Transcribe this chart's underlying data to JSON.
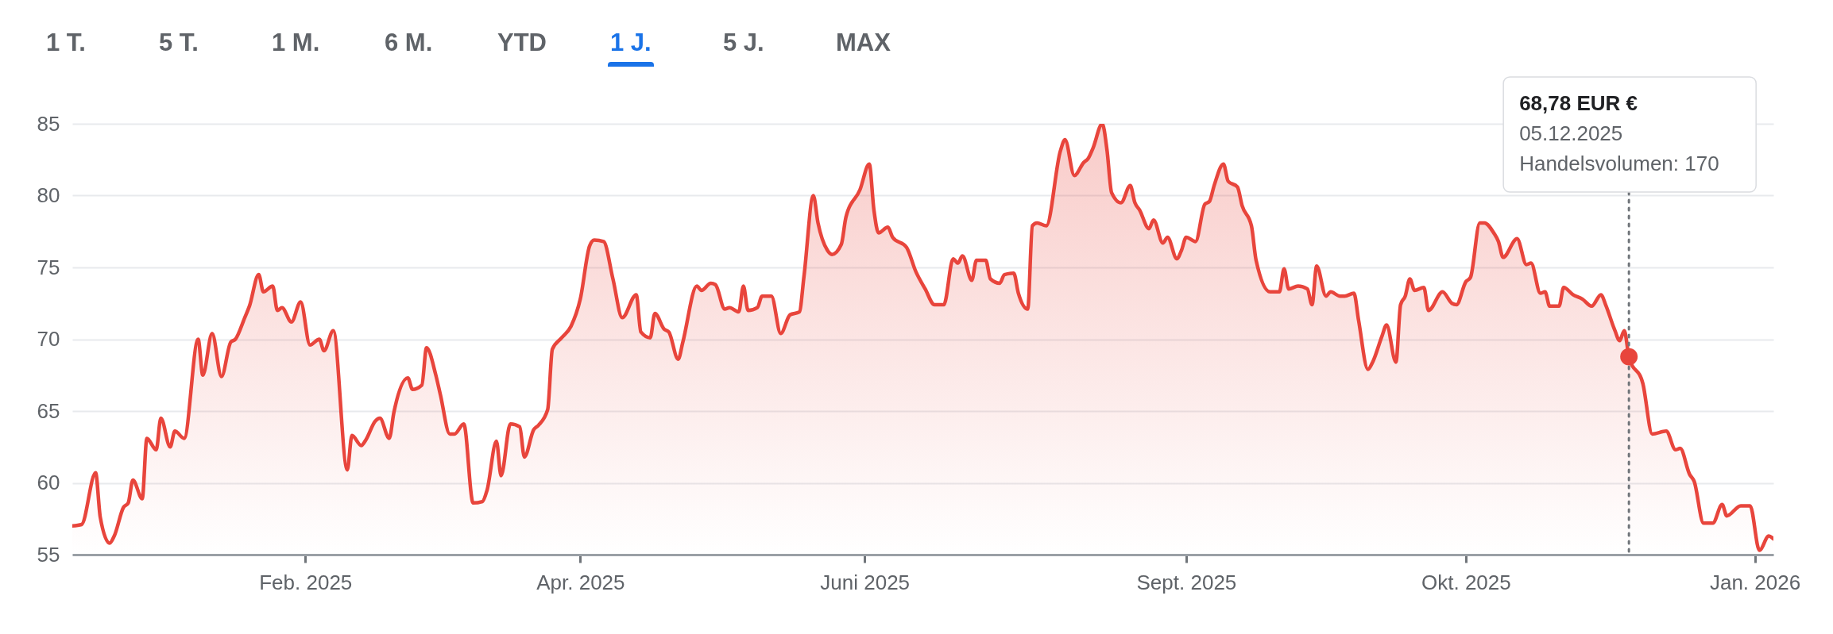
{
  "chart_data": {
    "type": "area",
    "annotations": [
      "1 T.",
      "5 T.",
      "1 M.",
      "6 M.",
      "YTD",
      "1 J.",
      "5 J.",
      "MAX",
      "68,78 EUR €\n05.12.2025\nHandelsvolumen: 170"
    ],
    "ref_lines": [
      {
        "axis": "x",
        "value": "2025-12-05",
        "color": "#70757a",
        "line_style": "dotted"
      }
    ],
    "x": [
      "2025-01-05",
      "2025-01-07",
      "2025-01-10",
      "2025-01-11",
      "2025-01-13",
      "2025-01-14",
      "2025-01-16",
      "2025-01-17",
      "2025-01-18",
      "2025-01-20",
      "2025-01-21",
      "2025-01-23",
      "2025-01-24",
      "2025-01-26",
      "2025-01-27",
      "2025-01-29",
      "2025-02-01",
      "2025-02-02",
      "2025-02-04",
      "2025-02-06",
      "2025-02-08",
      "2025-02-09",
      "2025-02-11",
      "2025-02-12",
      "2025-02-14",
      "2025-02-15",
      "2025-02-17",
      "2025-02-18",
      "2025-02-19",
      "2025-02-21",
      "2025-02-23",
      "2025-02-25",
      "2025-02-27",
      "2025-02-28",
      "2025-03-02",
      "2025-03-05",
      "2025-03-06",
      "2025-03-08",
      "2025-03-09",
      "2025-03-11",
      "2025-03-12",
      "2025-03-14",
      "2025-03-15",
      "2025-03-18",
      "2025-03-19",
      "2025-03-21",
      "2025-03-22",
      "2025-03-24",
      "2025-03-25",
      "2025-03-27",
      "2025-03-28",
      "2025-03-30",
      "2025-04-01",
      "2025-04-03",
      "2025-04-04",
      "2025-04-06",
      "2025-04-07",
      "2025-04-09",
      "2025-04-11",
      "2025-04-12",
      "2025-04-14",
      "2025-04-15",
      "2025-04-17",
      "2025-04-18",
      "2025-04-20",
      "2025-04-22",
      "2025-04-24",
      "2025-04-26",
      "2025-04-27",
      "2025-04-29",
      "2025-05-01",
      "2025-05-03",
      "2025-05-06",
      "2025-05-07",
      "2025-05-09",
      "2025-05-10",
      "2025-05-12",
      "2025-05-13",
      "2025-05-15",
      "2025-05-16",
      "2025-05-19",
      "2025-05-20",
      "2025-05-22",
      "2025-05-23",
      "2025-05-25",
      "2025-05-26",
      "2025-05-28",
      "2025-05-29",
      "2025-05-30",
      "2025-06-01",
      "2025-06-02",
      "2025-06-04",
      "2025-06-06",
      "2025-06-08",
      "2025-06-10",
      "2025-06-11",
      "2025-06-13",
      "2025-06-14",
      "2025-06-16",
      "2025-06-17",
      "2025-06-19",
      "2025-06-20",
      "2025-06-23",
      "2025-06-25",
      "2025-06-26",
      "2025-06-27",
      "2025-06-29",
      "2025-06-30",
      "2025-07-03",
      "2025-07-05",
      "2025-07-07",
      "2025-07-09",
      "2025-07-11",
      "2025-07-13",
      "2025-07-14",
      "2025-07-15",
      "2025-07-17",
      "2025-07-18",
      "2025-07-20",
      "2025-07-21",
      "2025-07-23",
      "2025-07-24",
      "2025-07-26",
      "2025-07-27",
      "2025-07-29",
      "2025-07-30",
      "2025-07-31",
      "2025-08-02",
      "2025-08-05",
      "2025-08-06",
      "2025-08-08",
      "2025-08-10",
      "2025-08-11",
      "2025-08-12",
      "2025-08-14",
      "2025-08-15",
      "2025-08-16",
      "2025-08-18",
      "2025-08-20",
      "2025-08-21",
      "2025-08-22",
      "2025-08-24",
      "2025-08-25",
      "2025-08-27",
      "2025-08-28",
      "2025-08-30",
      "2025-08-31",
      "2025-09-01",
      "2025-09-03",
      "2025-09-05",
      "2025-09-06",
      "2025-09-07",
      "2025-09-09",
      "2025-09-10",
      "2025-09-12",
      "2025-09-13",
      "2025-09-15",
      "2025-09-16",
      "2025-09-19",
      "2025-09-21",
      "2025-09-22",
      "2025-09-23",
      "2025-09-25",
      "2025-09-27",
      "2025-09-28",
      "2025-09-29",
      "2025-10-01",
      "2025-10-02",
      "2025-10-04",
      "2025-10-05",
      "2025-10-07",
      "2025-10-08",
      "2025-10-10",
      "2025-10-11",
      "2025-10-13",
      "2025-10-14",
      "2025-10-16",
      "2025-10-17",
      "2025-10-18",
      "2025-10-19",
      "2025-10-20",
      "2025-10-22",
      "2025-10-23",
      "2025-10-26",
      "2025-10-28",
      "2025-10-29",
      "2025-10-31",
      "2025-11-01",
      "2025-11-03",
      "2025-11-04",
      "2025-11-06",
      "2025-11-07",
      "2025-11-08",
      "2025-11-11",
      "2025-11-13",
      "2025-11-14",
      "2025-11-16",
      "2025-11-17",
      "2025-11-18",
      "2025-11-20",
      "2025-11-21",
      "2025-11-23",
      "2025-11-25",
      "2025-11-27",
      "2025-11-29",
      "2025-11-30",
      "2025-12-02",
      "2025-12-03",
      "2025-12-04",
      "2025-12-05",
      "2025-12-08",
      "2025-12-10",
      "2025-12-13",
      "2025-12-15",
      "2025-12-16",
      "2025-12-18",
      "2025-12-19",
      "2025-12-21",
      "2025-12-23",
      "2025-12-25",
      "2025-12-26",
      "2025-12-29",
      "2025-12-31",
      "2026-01-02",
      "2026-01-04",
      "2026-01-05"
    ],
    "series": [
      {
        "color": "#e8453c",
        "values": [
          57.0,
          57.1,
          60.7,
          57.6,
          55.8,
          56.3,
          58.3,
          58.6,
          60.2,
          58.9,
          63.1,
          62.3,
          64.5,
          62.5,
          63.6,
          63.1,
          70.0,
          67.5,
          70.4,
          67.4,
          69.8,
          70.0,
          71.5,
          72.3,
          74.5,
          73.3,
          73.7,
          72.0,
          72.2,
          71.2,
          72.6,
          69.6,
          70.0,
          69.2,
          70.6,
          60.9,
          63.3,
          62.6,
          63.0,
          64.3,
          64.5,
          63.1,
          64.9,
          67.3,
          66.5,
          66.8,
          69.4,
          67.5,
          66.1,
          63.4,
          63.4,
          64.1,
          58.6,
          58.7,
          59.5,
          62.9,
          60.5,
          64.1,
          63.9,
          61.8,
          63.7,
          64.0,
          65.1,
          69.3,
          70.1,
          70.9,
          72.8,
          76.5,
          76.9,
          76.8,
          74.2,
          71.5,
          73.1,
          70.5,
          70.1,
          71.8,
          70.7,
          70.5,
          68.6,
          69.8,
          73.7,
          73.4,
          73.9,
          73.8,
          72.1,
          72.2,
          71.9,
          73.7,
          72.0,
          72.2,
          73.0,
          73.0,
          70.4,
          71.7,
          71.9,
          74.4,
          80.0,
          78.1,
          76.2,
          75.9,
          76.6,
          78.5,
          80.4,
          82.2,
          79.0,
          77.4,
          77.8,
          77.1,
          76.4,
          74.7,
          73.5,
          72.4,
          72.4,
          75.6,
          75.3,
          75.8,
          74.1,
          75.5,
          75.5,
          74.2,
          73.9,
          74.5,
          74.6,
          73.2,
          72.1,
          77.9,
          78.1,
          77.9,
          83.1,
          83.9,
          81.4,
          82.3,
          82.6,
          83.3,
          85.0,
          83.2,
          80.2,
          79.5,
          80.7,
          79.5,
          79.0,
          77.7,
          78.3,
          76.7,
          77.1,
          75.6,
          76.2,
          77.1,
          76.8,
          79.4,
          79.6,
          80.7,
          82.2,
          81.0,
          80.6,
          79.3,
          77.9,
          75.5,
          73.3,
          73.3,
          74.9,
          73.5,
          73.7,
          73.5,
          72.4,
          75.1,
          73.0,
          73.3,
          73.0,
          73.0,
          73.2,
          71.3,
          67.9,
          68.4,
          70.2,
          71.0,
          68.4,
          72.4,
          73.0,
          74.2,
          73.4,
          73.6,
          72.0,
          73.3,
          72.5,
          72.4,
          74.0,
          74.3,
          78.1,
          78.1,
          77.4,
          76.8,
          75.7,
          77.0,
          75.2,
          75.3,
          73.2,
          73.3,
          72.3,
          72.3,
          73.6,
          73.1,
          72.8,
          72.3,
          73.1,
          72.4,
          70.6,
          69.9,
          70.6,
          68.78,
          66.9,
          63.4,
          63.6,
          62.3,
          62.4,
          60.6,
          60.1,
          57.2,
          57.2,
          58.5,
          57.7,
          58.4,
          58.4,
          55.3,
          56.3,
          56.1
        ]
      }
    ],
    "xlim": [
      "2025-01-05",
      "2026-01-05"
    ],
    "xticks": [
      {
        "value": "2025-02-24",
        "label": "Feb. 2025"
      },
      {
        "value": "2025-04-24",
        "label": "Apr. 2025"
      },
      {
        "value": "2025-06-24",
        "label": "Juni 2025"
      },
      {
        "value": "2025-09-01",
        "label": "Sept. 2025"
      },
      {
        "value": "2025-10-31",
        "label": "Okt. 2025"
      },
      {
        "value": "2026-01-01",
        "label": "Jan. 2026"
      }
    ],
    "ylim": [
      55,
      85
    ],
    "yticks": [
      55,
      60,
      65,
      70,
      75,
      80,
      85
    ],
    "grid": "y"
  }
}
